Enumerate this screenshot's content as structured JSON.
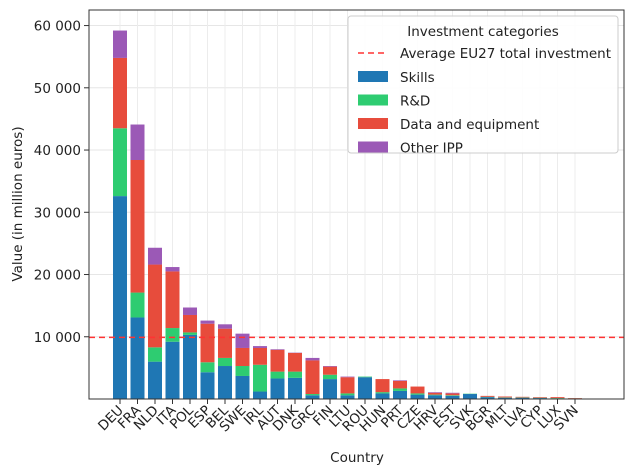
{
  "chart_data": {
    "type": "bar",
    "stacked": true,
    "xlabel": "Country",
    "ylabel": "Value (in million euros)",
    "categories": [
      "DEU",
      "FRA",
      "NLD",
      "ITA",
      "POL",
      "ESP",
      "BEL",
      "SWE",
      "IRL",
      "AUT",
      "DNK",
      "GRC",
      "FIN",
      "LTU",
      "ROU",
      "HUN",
      "PRT",
      "CZE",
      "HRV",
      "EST",
      "SVK",
      "BGR",
      "MLT",
      "LVA",
      "CYP",
      "LUX",
      "SVN"
    ],
    "series": [
      {
        "name": "Skills",
        "color": "#1f77b4",
        "values": [
          32600,
          13100,
          6000,
          9200,
          10300,
          4300,
          5300,
          3700,
          1200,
          3300,
          3400,
          600,
          3200,
          600,
          3500,
          900,
          1300,
          700,
          600,
          500,
          800,
          300,
          200,
          200,
          150,
          100,
          50
        ]
      },
      {
        "name": "R&D",
        "color": "#2ecc71",
        "values": [
          10900,
          4000,
          2300,
          2200,
          400,
          1600,
          1300,
          1600,
          4300,
          1100,
          1000,
          200,
          700,
          300,
          100,
          200,
          400,
          200,
          100,
          100,
          50,
          50,
          50,
          50,
          50,
          50,
          50
        ]
      },
      {
        "name": "Data and equipment",
        "color": "#e74c3c",
        "values": [
          11300,
          21300,
          13300,
          9100,
          2800,
          6200,
          4700,
          2900,
          2700,
          3500,
          3000,
          5400,
          1300,
          2600,
          0,
          2100,
          1200,
          1100,
          300,
          300,
          0,
          150,
          150,
          100,
          100,
          150,
          50
        ]
      },
      {
        "name": "Other IPP",
        "color": "#9b59b6",
        "values": [
          4400,
          5700,
          2700,
          700,
          1200,
          500,
          700,
          2300,
          300,
          100,
          50,
          400,
          100,
          100,
          0,
          0,
          100,
          0,
          100,
          100,
          0,
          0,
          0,
          0,
          0,
          0,
          0
        ]
      }
    ],
    "ylim": [
      0,
      62500
    ],
    "yticks": [
      10000,
      20000,
      30000,
      40000,
      50000,
      60000
    ],
    "ytick_labels": [
      "10 000",
      "20 000",
      "30 000",
      "40 000",
      "50 000",
      "60 000"
    ],
    "reference_line": {
      "label": "Average EU27 total investment",
      "value": 9900,
      "color": "#ff3333"
    },
    "legend": {
      "title": "Investment categories",
      "placement": "top-right"
    },
    "grid": true
  }
}
